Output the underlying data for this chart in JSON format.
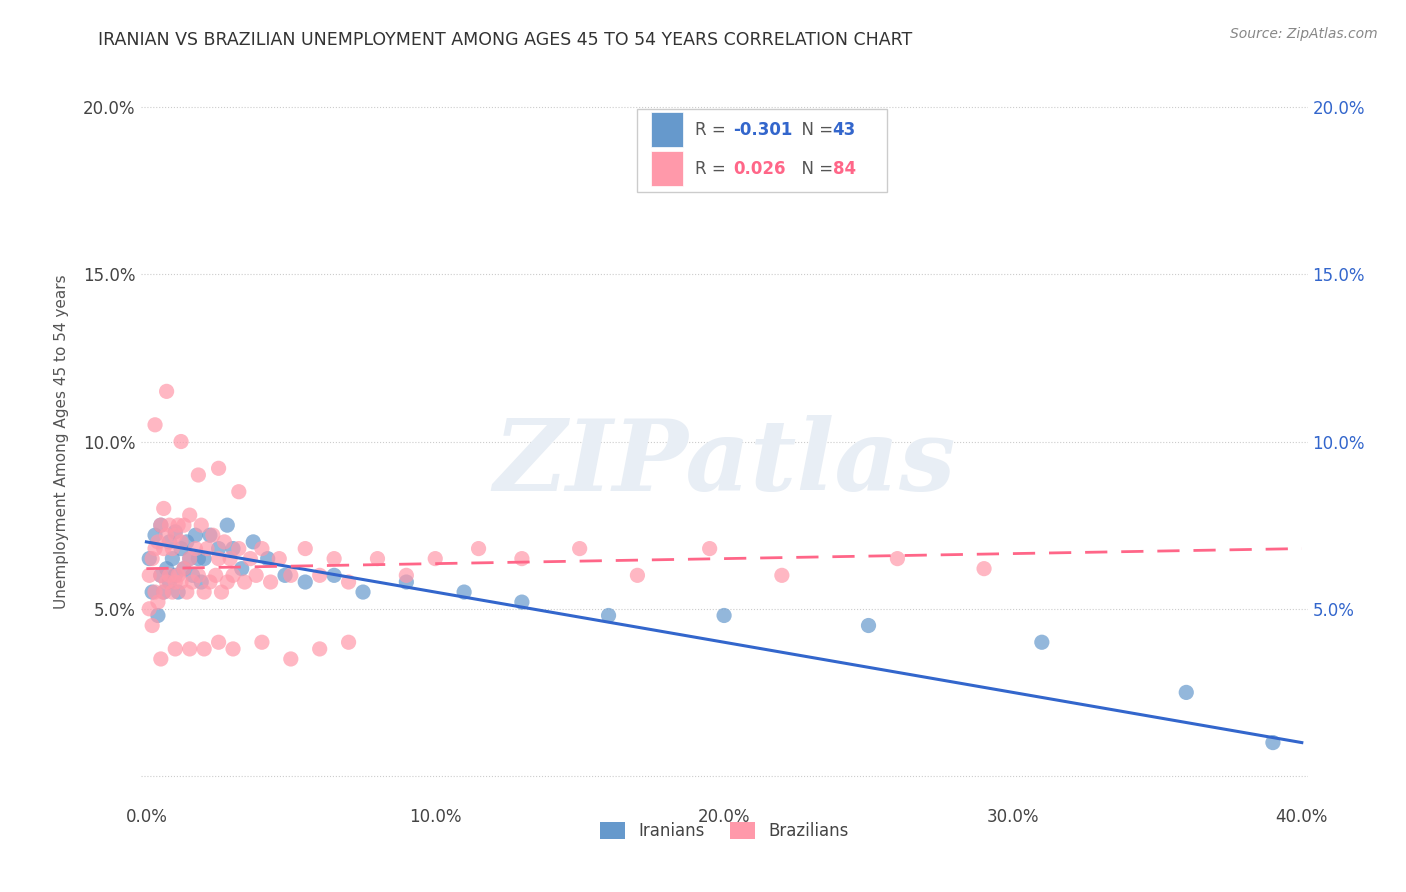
{
  "title": "IRANIAN VS BRAZILIAN UNEMPLOYMENT AMONG AGES 45 TO 54 YEARS CORRELATION CHART",
  "source": "Source: ZipAtlas.com",
  "ylabel": "Unemployment Among Ages 45 to 54 years",
  "xlim": [
    -0.002,
    0.402
  ],
  "ylim": [
    -0.008,
    0.208
  ],
  "xticks": [
    0.0,
    0.1,
    0.2,
    0.3,
    0.4
  ],
  "xtick_labels": [
    "0.0%",
    "10.0%",
    "20.0%",
    "30.0%",
    "40.0%"
  ],
  "yticks": [
    0.0,
    0.05,
    0.1,
    0.15,
    0.2
  ],
  "ytick_labels": [
    "",
    "5.0%",
    "10.0%",
    "15.0%",
    "20.0%"
  ],
  "right_yticks": [
    0.05,
    0.1,
    0.15,
    0.2
  ],
  "right_ytick_labels": [
    "5.0%",
    "10.0%",
    "15.0%",
    "20.0%"
  ],
  "iranian_color": "#6699CC",
  "brazilian_color": "#FF99AA",
  "trendline_iranian_color": "#3366CC",
  "trendline_brazilian_color": "#FF6688",
  "legend_R_iranian": "-0.301",
  "legend_N_iranian": "43",
  "legend_R_brazilian": "0.026",
  "legend_N_brazilian": "84",
  "watermark_text": "ZIPatlas",
  "watermark_color": "#E8EEF5",
  "background_color": "#FFFFFF",
  "grid_color": "#E0E0E0",
  "iran_x": [
    0.001,
    0.002,
    0.003,
    0.004,
    0.005,
    0.005,
    0.006,
    0.007,
    0.008,
    0.008,
    0.009,
    0.01,
    0.01,
    0.011,
    0.012,
    0.013,
    0.014,
    0.015,
    0.016,
    0.017,
    0.018,
    0.019,
    0.02,
    0.022,
    0.025,
    0.028,
    0.03,
    0.033,
    0.037,
    0.042,
    0.048,
    0.055,
    0.065,
    0.075,
    0.09,
    0.11,
    0.13,
    0.16,
    0.2,
    0.25,
    0.31,
    0.36,
    0.39
  ],
  "iran_y": [
    0.065,
    0.055,
    0.072,
    0.048,
    0.06,
    0.075,
    0.055,
    0.062,
    0.058,
    0.07,
    0.065,
    0.06,
    0.073,
    0.055,
    0.068,
    0.062,
    0.07,
    0.065,
    0.06,
    0.072,
    0.065,
    0.058,
    0.065,
    0.072,
    0.068,
    0.075,
    0.068,
    0.062,
    0.07,
    0.065,
    0.06,
    0.058,
    0.06,
    0.055,
    0.058,
    0.055,
    0.052,
    0.048,
    0.048,
    0.045,
    0.04,
    0.025,
    0.01
  ],
  "braz_x": [
    0.001,
    0.001,
    0.002,
    0.002,
    0.003,
    0.003,
    0.004,
    0.004,
    0.005,
    0.005,
    0.006,
    0.006,
    0.006,
    0.007,
    0.007,
    0.008,
    0.008,
    0.009,
    0.009,
    0.01,
    0.01,
    0.011,
    0.011,
    0.012,
    0.012,
    0.013,
    0.013,
    0.014,
    0.015,
    0.015,
    0.016,
    0.017,
    0.018,
    0.019,
    0.02,
    0.021,
    0.022,
    0.023,
    0.024,
    0.025,
    0.026,
    0.027,
    0.028,
    0.029,
    0.03,
    0.032,
    0.034,
    0.036,
    0.038,
    0.04,
    0.043,
    0.046,
    0.05,
    0.055,
    0.06,
    0.065,
    0.07,
    0.08,
    0.09,
    0.1,
    0.115,
    0.13,
    0.15,
    0.17,
    0.195,
    0.22,
    0.26,
    0.29,
    0.005,
    0.01,
    0.015,
    0.02,
    0.025,
    0.03,
    0.003,
    0.007,
    0.012,
    0.018,
    0.025,
    0.032,
    0.04,
    0.05,
    0.06,
    0.07
  ],
  "braz_y": [
    0.05,
    0.06,
    0.045,
    0.065,
    0.055,
    0.068,
    0.052,
    0.07,
    0.06,
    0.075,
    0.055,
    0.068,
    0.08,
    0.058,
    0.072,
    0.06,
    0.075,
    0.055,
    0.068,
    0.058,
    0.072,
    0.06,
    0.075,
    0.058,
    0.07,
    0.062,
    0.075,
    0.055,
    0.065,
    0.078,
    0.058,
    0.068,
    0.06,
    0.075,
    0.055,
    0.068,
    0.058,
    0.072,
    0.06,
    0.065,
    0.055,
    0.07,
    0.058,
    0.065,
    0.06,
    0.068,
    0.058,
    0.065,
    0.06,
    0.068,
    0.058,
    0.065,
    0.06,
    0.068,
    0.06,
    0.065,
    0.058,
    0.065,
    0.06,
    0.065,
    0.068,
    0.065,
    0.068,
    0.06,
    0.068,
    0.06,
    0.065,
    0.062,
    0.035,
    0.038,
    0.038,
    0.038,
    0.04,
    0.038,
    0.105,
    0.115,
    0.1,
    0.09,
    0.092,
    0.085,
    0.04,
    0.035,
    0.038,
    0.04
  ],
  "iran_trend_x": [
    0.0,
    0.4
  ],
  "iran_trend_y": [
    0.07,
    0.01
  ],
  "braz_trend_x": [
    0.0,
    0.4
  ],
  "braz_trend_y": [
    0.062,
    0.068
  ]
}
